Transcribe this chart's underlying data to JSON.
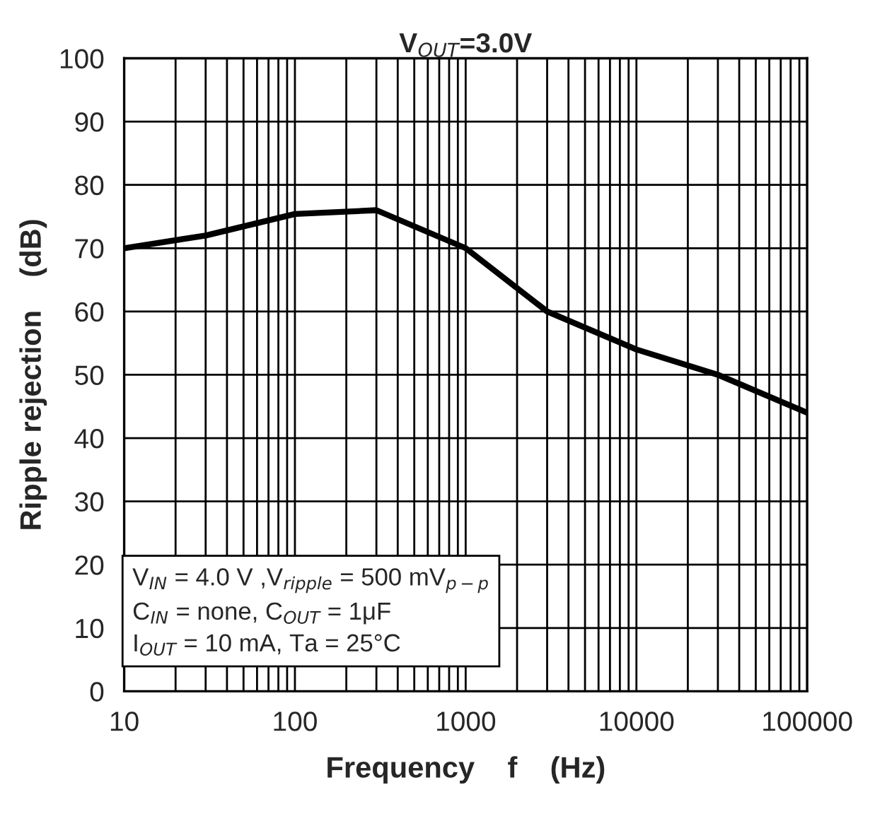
{
  "chart_data": {
    "type": "line",
    "title": "V$_{OUT}$=3.0V",
    "xlabel": "Frequency    f    (Hz)",
    "ylabel": "Ripple rejection    (dB)",
    "x": [
      10,
      30,
      100,
      300,
      1000,
      3000,
      10000,
      30000,
      100000
    ],
    "series": [
      {
        "color": "#000000",
        "values": [
          70,
          72,
          75.4,
          76,
          70,
          60,
          54,
          50,
          44
        ]
      }
    ],
    "log": "x",
    "xlim": [
      10,
      100000
    ],
    "xticks": [
      10,
      100,
      1000,
      10000,
      100000
    ],
    "ylim": [
      0,
      100
    ],
    "yticks": [
      0,
      10,
      20,
      30,
      40,
      50,
      60,
      70,
      80,
      90,
      100
    ],
    "grid": true,
    "annotations": [
      "V$_{IN}$ = 4.0 V ,V$_{ripple}$ = 500 mV$_{p−p}$\nC$_{IN}$ = none, C$_{OUT}$ = 1μF\nI$_{OUT}$ = 10 mA, Ta = 25°C"
    ]
  }
}
